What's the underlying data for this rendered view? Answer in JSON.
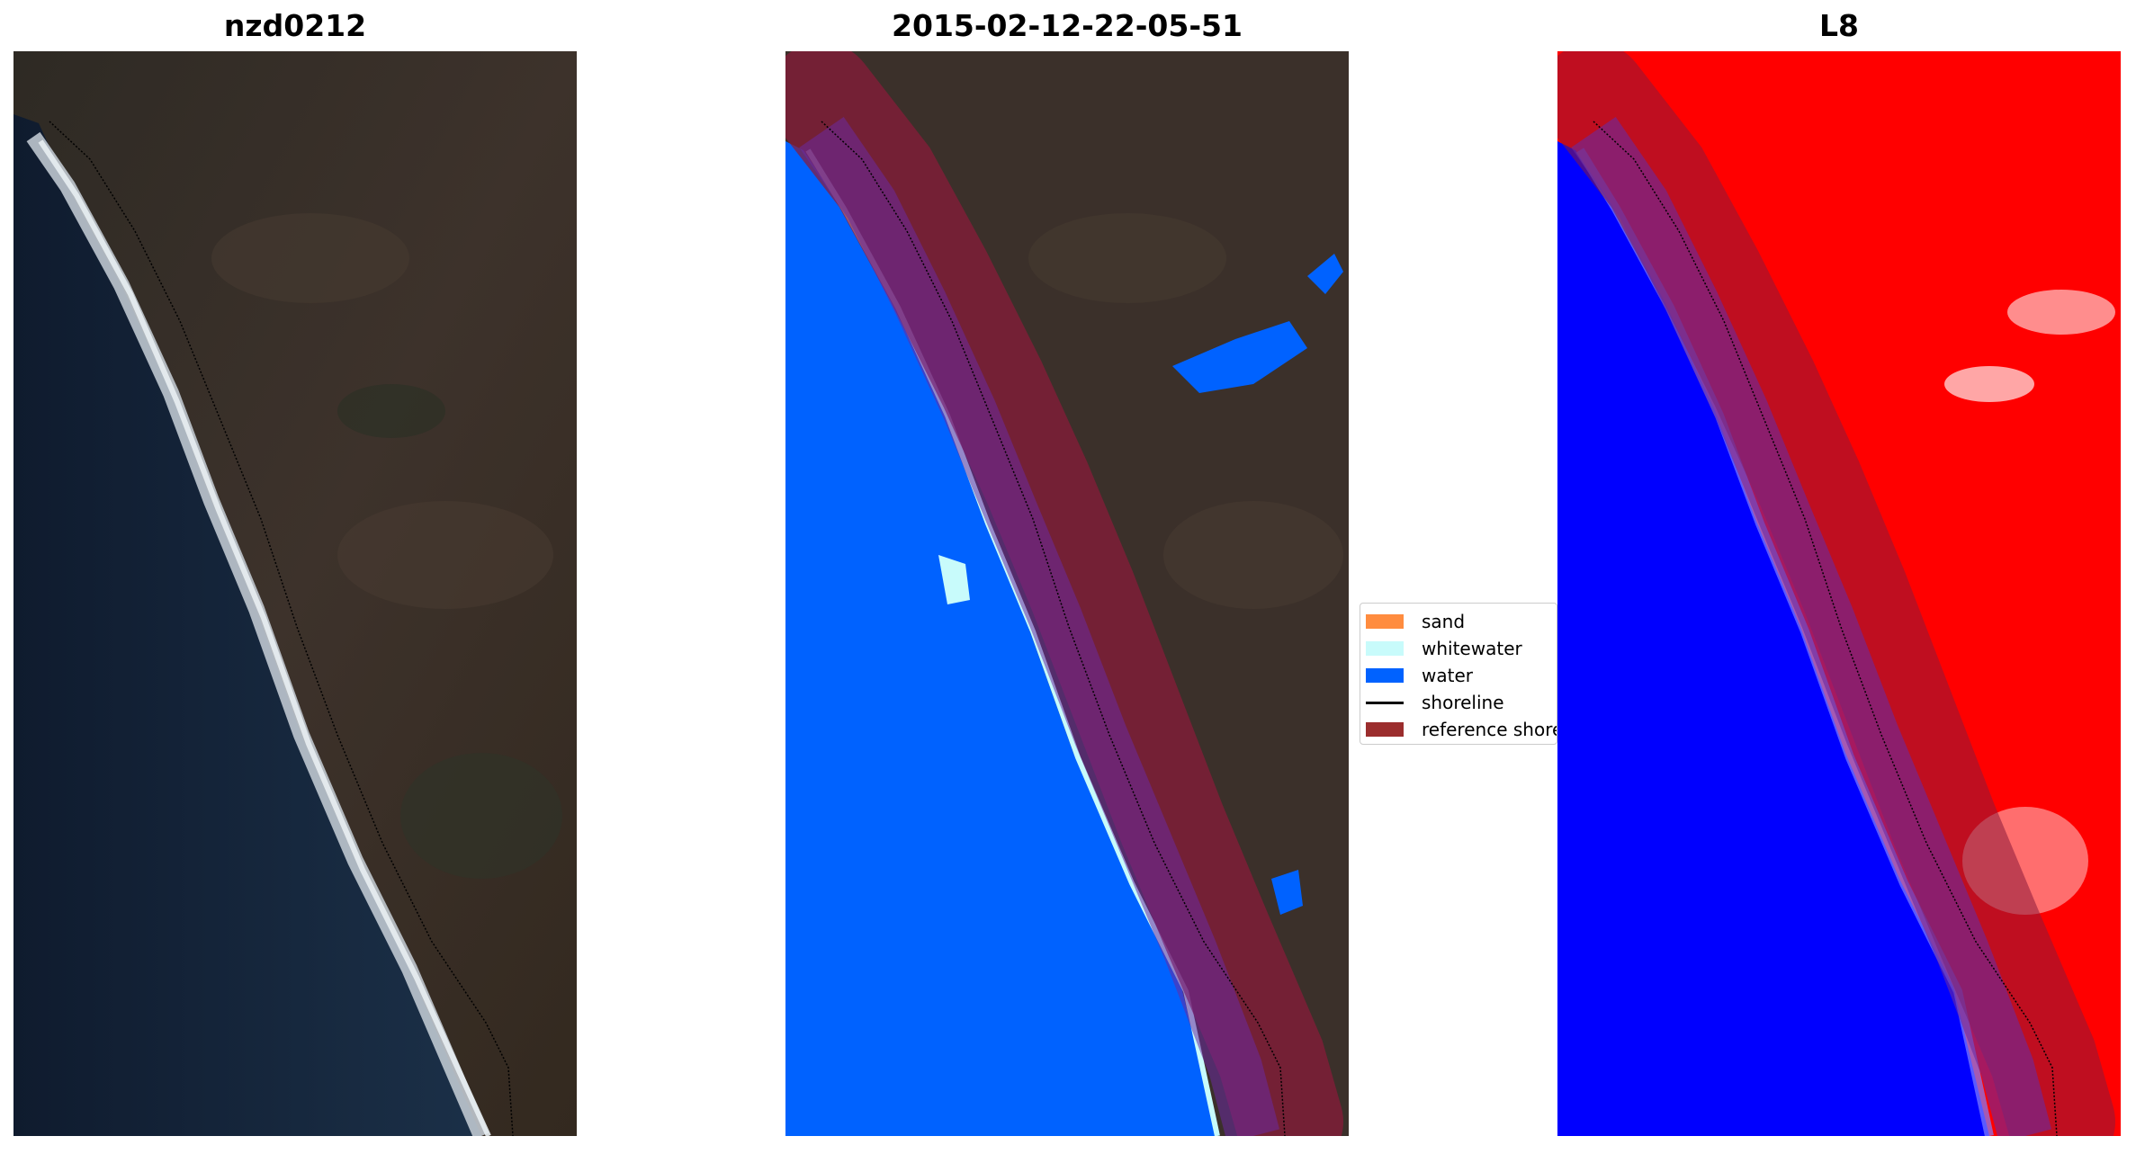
{
  "panels": [
    {
      "title": "nzd0212",
      "kind": "rgb-image"
    },
    {
      "title": "2015-02-12-22-05-51",
      "kind": "classification-image"
    },
    {
      "title": "L8",
      "kind": "index-image"
    }
  ],
  "legend": {
    "items": [
      {
        "label": "sand",
        "color": "#ff8c3f",
        "symbol": "patch"
      },
      {
        "label": "whitewater",
        "color": "#c8fbfb",
        "symbol": "patch"
      },
      {
        "label": "water",
        "color": "#0062ff",
        "symbol": "patch"
      },
      {
        "label": "shoreline",
        "color": "#000000",
        "symbol": "line"
      },
      {
        "label": "reference shoreline buffer",
        "color": "#9b2d2d",
        "symbol": "patch"
      }
    ]
  },
  "colors": {
    "land": "#3b302a",
    "ocean": "#142236",
    "class_water": "#0062ff",
    "class_whitewater": "#c8fbfb",
    "index_water": "#0000ff",
    "index_land": "#ff0000",
    "buffer": "#8b1a3a"
  }
}
